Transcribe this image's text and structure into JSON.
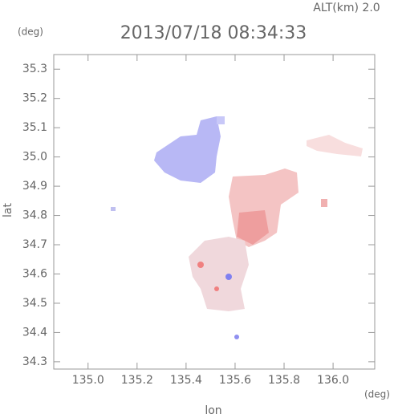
{
  "chart_data": {
    "type": "map",
    "title": "2013/07/18 08:34:33",
    "annotation": "ALT(km) 2.0",
    "y_unit": "(deg)",
    "x_unit": "(deg)",
    "xlabel": "lon",
    "ylabel": "lat",
    "xlim": [
      134.86,
      136.17
    ],
    "ylim": [
      34.275,
      35.35
    ],
    "xticks": [
      {
        "value": 135,
        "label": "135.0"
      },
      135.2,
      135.4,
      135.6,
      135.8,
      {
        "value": 136,
        "label": "136.0"
      }
    ],
    "yticks": [
      34.3,
      34.4,
      34.5,
      34.6,
      34.7,
      34.8,
      34.9,
      {
        "value": 35,
        "label": "35.0"
      },
      35.1,
      35.2,
      35.3
    ]
  }
}
